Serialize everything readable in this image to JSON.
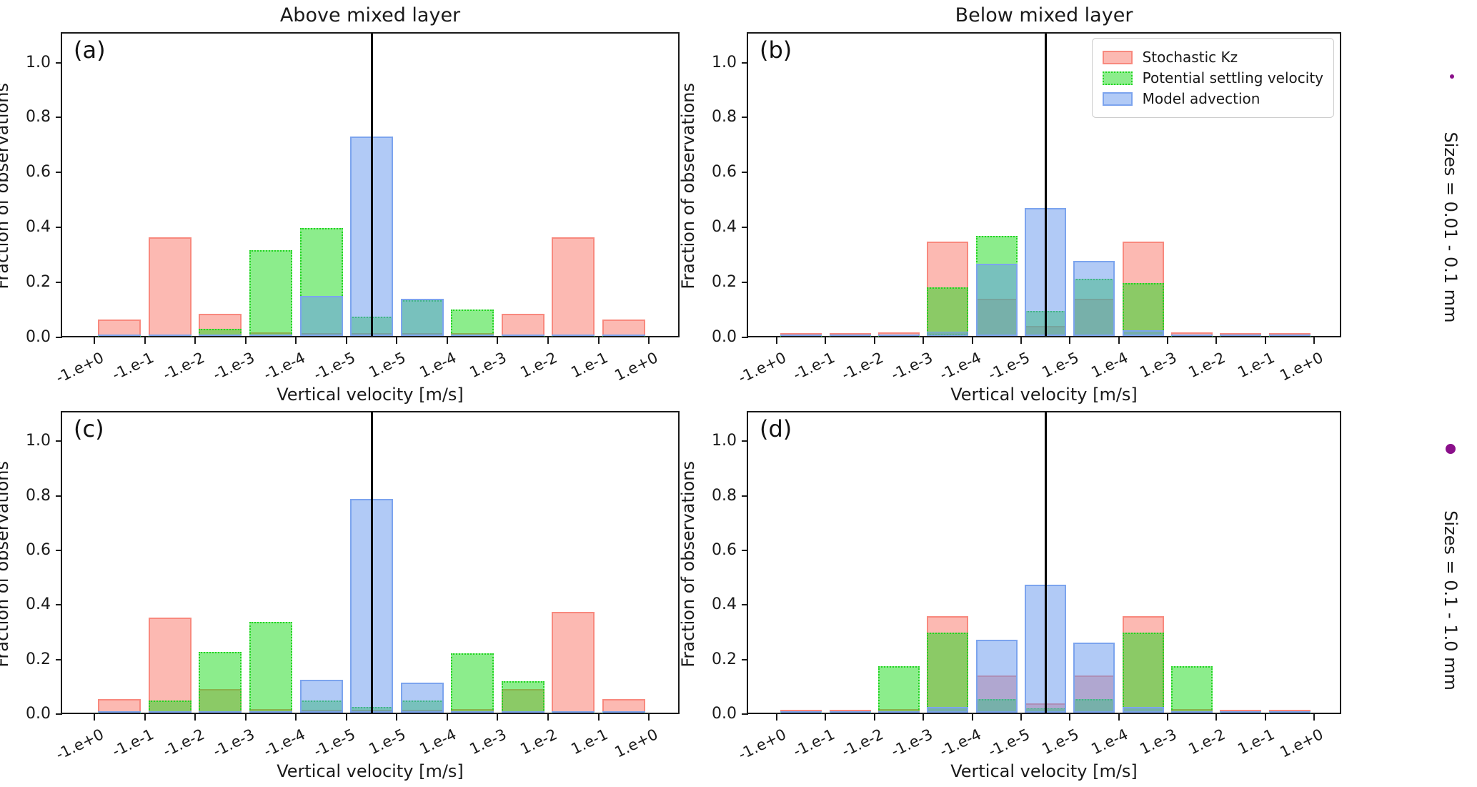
{
  "figure": {
    "titles": {
      "left": "Above mixed layer",
      "right": "Below mixed layer"
    },
    "ylabel": "Fraction of observations",
    "xlabel": "Vertical velocity [m/s]",
    "panel_letters": [
      "(a)",
      "(b)",
      "(c)",
      "(d)"
    ],
    "ytick_labels": [
      "0.0",
      "0.2",
      "0.4",
      "0.6",
      "0.8",
      "1.0"
    ],
    "xtick_labels": [
      "-1.e+0",
      "-1.e-1",
      "-1.e-2",
      "-1.e-3",
      "-1.e-4",
      "-1.e-5",
      "1.e-5",
      "1.e-4",
      "1.e-3",
      "1.e-2",
      "1.e-1",
      "1.e+0"
    ],
    "legend": {
      "items": [
        {
          "label": "Stochastic Kz",
          "fill": "rgba(250,128,114,0.55)",
          "edge": "#f8897e",
          "edge_style": "solid"
        },
        {
          "label": "Potential settling velocity",
          "fill": "rgba(25,220,25,0.5)",
          "edge": "#21d421",
          "edge_style": "dotted"
        },
        {
          "label": "Model advection",
          "fill": "rgba(100,149,237,0.5)",
          "edge": "#7ca4ee",
          "edge_style": "solid"
        }
      ]
    },
    "size_annotations": [
      {
        "label": "Sizes = 0.01 - 0.1 mm",
        "dot": "small",
        "dot_color": "#8a0f8a"
      },
      {
        "label": "Sizes = 0.1 - 1.0 mm",
        "dot": "large",
        "dot_color": "#8a0f8a"
      }
    ]
  },
  "chart_data": [
    {
      "panel": "a",
      "type": "bar",
      "title": "Above mixed layer",
      "row_label": "Sizes = 0.01 - 0.1 mm",
      "xlabel": "Vertical velocity [m/s]",
      "ylabel": "Fraction of observations",
      "ylim": [
        0,
        1.1
      ],
      "yticks": [
        0.0,
        0.2,
        0.4,
        0.6,
        0.8,
        1.0
      ],
      "bin_edges": [
        "-1.e+0",
        "-1.e-1",
        "-1.e-2",
        "-1.e-3",
        "-1.e-4",
        "-1.e-5",
        "1.e-5",
        "1.e-4",
        "1.e-3",
        "1.e-2",
        "1.e-1",
        "1.e+0"
      ],
      "vline_at_zero": true,
      "series": [
        {
          "name": "Stochastic Kz",
          "values": [
            0.06,
            0.355,
            0.08,
            0.012,
            0.005,
            0.01,
            0.005,
            0.01,
            0.08,
            0.355,
            0.06
          ]
        },
        {
          "name": "Potential settling velocity",
          "values": [
            0.005,
            0.005,
            0.025,
            0.31,
            0.39,
            0.07,
            0.13,
            0.095,
            0.005,
            0.005,
            0.005
          ]
        },
        {
          "name": "Model advection",
          "values": [
            0.005,
            0.005,
            0.005,
            0.005,
            0.145,
            0.72,
            0.135,
            0.005,
            0.005,
            0.005,
            0.005
          ]
        }
      ]
    },
    {
      "panel": "b",
      "type": "bar",
      "title": "Below mixed layer",
      "row_label": "Sizes = 0.01 - 0.1 mm",
      "xlabel": "Vertical velocity [m/s]",
      "ylabel": "Fraction of observations",
      "ylim": [
        0,
        1.1
      ],
      "yticks": [
        0.0,
        0.2,
        0.4,
        0.6,
        0.8,
        1.0
      ],
      "bin_edges": [
        "-1.e+0",
        "-1.e-1",
        "-1.e-2",
        "-1.e-3",
        "-1.e-4",
        "-1.e-5",
        "1.e-5",
        "1.e-4",
        "1.e-3",
        "1.e-2",
        "1.e-1",
        "1.e+0"
      ],
      "vline_at_zero": true,
      "series": [
        {
          "name": "Stochastic Kz",
          "values": [
            0.005,
            0.005,
            0.012,
            0.34,
            0.135,
            0.035,
            0.135,
            0.34,
            0.012,
            0.005,
            0.005
          ]
        },
        {
          "name": "Potential settling velocity",
          "values": [
            0.005,
            0.005,
            0.005,
            0.175,
            0.36,
            0.09,
            0.205,
            0.19,
            0.005,
            0.005,
            0.005
          ]
        },
        {
          "name": "Model advection",
          "values": [
            0.005,
            0.005,
            0.005,
            0.015,
            0.26,
            0.46,
            0.27,
            0.02,
            0.005,
            0.005,
            0.005
          ]
        }
      ]
    },
    {
      "panel": "c",
      "type": "bar",
      "title": "",
      "row_label": "Sizes = 0.1 - 1.0 mm",
      "xlabel": "Vertical velocity [m/s]",
      "ylabel": "Fraction of observations",
      "ylim": [
        0,
        1.1
      ],
      "yticks": [
        0.0,
        0.2,
        0.4,
        0.6,
        0.8,
        1.0
      ],
      "bin_edges": [
        "-1.e+0",
        "-1.e-1",
        "-1.e-2",
        "-1.e-3",
        "-1.e-4",
        "-1.e-5",
        "1.e-5",
        "1.e-4",
        "1.e-3",
        "1.e-2",
        "1.e-1",
        "1.e+0"
      ],
      "vline_at_zero": true,
      "series": [
        {
          "name": "Stochastic Kz",
          "values": [
            0.05,
            0.345,
            0.085,
            0.012,
            0.005,
            0.01,
            0.005,
            0.012,
            0.085,
            0.365,
            0.05
          ]
        },
        {
          "name": "Potential settling velocity",
          "values": [
            0.005,
            0.045,
            0.22,
            0.33,
            0.045,
            0.02,
            0.045,
            0.215,
            0.115,
            0.005,
            0.005
          ]
        },
        {
          "name": "Model advection",
          "values": [
            0.005,
            0.005,
            0.005,
            0.005,
            0.12,
            0.775,
            0.11,
            0.005,
            0.005,
            0.005,
            0.005
          ]
        }
      ]
    },
    {
      "panel": "d",
      "type": "bar",
      "title": "",
      "row_label": "Sizes = 0.1 - 1.0 mm",
      "xlabel": "Vertical velocity [m/s]",
      "ylabel": "Fraction of observations",
      "ylim": [
        0,
        1.1
      ],
      "yticks": [
        0.0,
        0.2,
        0.4,
        0.6,
        0.8,
        1.0
      ],
      "bin_edges": [
        "-1.e+0",
        "-1.e-1",
        "-1.e-2",
        "-1.e-3",
        "-1.e-4",
        "-1.e-5",
        "1.e-5",
        "1.e-4",
        "1.e-3",
        "1.e-2",
        "1.e-1",
        "1.e+0"
      ],
      "vline_at_zero": true,
      "series": [
        {
          "name": "Stochastic Kz",
          "values": [
            0.005,
            0.005,
            0.012,
            0.35,
            0.135,
            0.035,
            0.135,
            0.35,
            0.012,
            0.005,
            0.005
          ]
        },
        {
          "name": "Potential settling velocity",
          "values": [
            0.005,
            0.005,
            0.17,
            0.29,
            0.05,
            0.015,
            0.05,
            0.29,
            0.17,
            0.005,
            0.005
          ]
        },
        {
          "name": "Model advection",
          "values": [
            0.005,
            0.005,
            0.005,
            0.02,
            0.265,
            0.465,
            0.255,
            0.02,
            0.005,
            0.005,
            0.005
          ]
        }
      ]
    }
  ]
}
